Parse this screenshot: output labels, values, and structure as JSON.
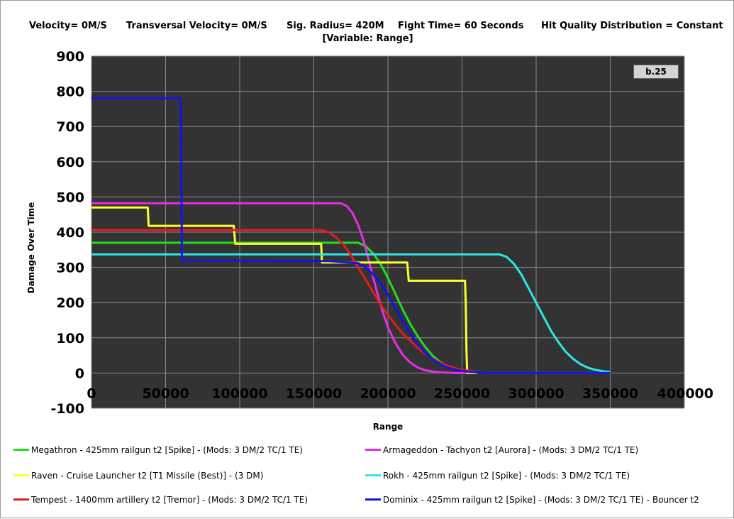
{
  "header": {
    "velocity": "Velocity= 0M/S",
    "transversal": "Transversal Velocity= 0M/S",
    "sig_radius": "Sig. Radius= 420M",
    "fight_time": "Fight Time= 60 Seconds",
    "hit_quality": "Hit Quality Distribution = Constant",
    "variable": "[Variable: Range]"
  },
  "badge": "b.25",
  "chart_data": {
    "type": "line",
    "title": "",
    "xlabel": "Range",
    "ylabel": "Damage Over Time",
    "xlim": [
      0,
      400000
    ],
    "ylim": [
      -100,
      900
    ],
    "x_ticks": [
      "0",
      "50000",
      "100000",
      "150000",
      "200000",
      "250000",
      "300000",
      "350000",
      "400000"
    ],
    "y_ticks": [
      "900",
      "800",
      "700",
      "600",
      "500",
      "400",
      "300",
      "200",
      "100",
      "0",
      "-100"
    ],
    "grid": true,
    "legend_position": "bottom",
    "series": [
      {
        "name": "Megathron - 425mm railgun t2 [Spike] - (Mods: 3 DM/2 TC/1 TE)",
        "color": "#22dd22",
        "points": [
          [
            0,
            370
          ],
          [
            150000,
            370
          ],
          [
            180000,
            370
          ],
          [
            185000,
            360
          ],
          [
            190000,
            340
          ],
          [
            195000,
            310
          ],
          [
            200000,
            270
          ],
          [
            205000,
            225
          ],
          [
            210000,
            180
          ],
          [
            215000,
            140
          ],
          [
            220000,
            105
          ],
          [
            225000,
            75
          ],
          [
            230000,
            50
          ],
          [
            235000,
            32
          ],
          [
            240000,
            20
          ],
          [
            245000,
            12
          ],
          [
            250000,
            7
          ],
          [
            255000,
            4
          ],
          [
            260000,
            2
          ],
          [
            265000,
            1
          ],
          [
            270000,
            0
          ],
          [
            350000,
            0
          ]
        ]
      },
      {
        "name": "Armageddon - Tachyon t2 [Aurora] - (Mods: 3 DM/2 TC/1 TE)",
        "color": "#e62ee6",
        "points": [
          [
            0,
            482
          ],
          [
            168000,
            482
          ],
          [
            172000,
            475
          ],
          [
            176000,
            455
          ],
          [
            180000,
            420
          ],
          [
            184000,
            370
          ],
          [
            188000,
            305
          ],
          [
            192000,
            240
          ],
          [
            196000,
            180
          ],
          [
            200000,
            130
          ],
          [
            205000,
            85
          ],
          [
            210000,
            52
          ],
          [
            215000,
            30
          ],
          [
            220000,
            16
          ],
          [
            225000,
            8
          ],
          [
            230000,
            4
          ],
          [
            235000,
            2
          ],
          [
            240000,
            1
          ],
          [
            245000,
            0
          ],
          [
            260000,
            0
          ]
        ]
      },
      {
        "name": "Raven - Cruise Launcher t2 [T1 Missile (Best)] - (3 DM)",
        "color": "#ffff2a",
        "points": [
          [
            0,
            470
          ],
          [
            38000,
            470
          ],
          [
            38500,
            418
          ],
          [
            96000,
            418
          ],
          [
            97000,
            367
          ],
          [
            155000,
            367
          ],
          [
            155500,
            314
          ],
          [
            213000,
            314
          ],
          [
            214000,
            262
          ],
          [
            252000,
            262
          ],
          [
            252500,
            200
          ],
          [
            253000,
            60
          ],
          [
            253500,
            0
          ],
          [
            260000,
            0
          ]
        ]
      },
      {
        "name": "Rokh - 425mm railgun t2 [Spike] - (Mods: 3 DM/2 TC/1 TE)",
        "color": "#2ee6e6",
        "points": [
          [
            0,
            337
          ],
          [
            275000,
            337
          ],
          [
            280000,
            330
          ],
          [
            285000,
            310
          ],
          [
            290000,
            280
          ],
          [
            295000,
            240
          ],
          [
            300000,
            200
          ],
          [
            305000,
            160
          ],
          [
            310000,
            120
          ],
          [
            315000,
            88
          ],
          [
            320000,
            60
          ],
          [
            325000,
            40
          ],
          [
            330000,
            25
          ],
          [
            335000,
            15
          ],
          [
            340000,
            9
          ],
          [
            345000,
            5
          ],
          [
            350000,
            3
          ]
        ]
      },
      {
        "name": "Tempest - 1400mm artillery t2 [Tremor] - (Mods: 3 DM/2 TC/1 TE)",
        "color": "#e61c1c",
        "points": [
          [
            0,
            406
          ],
          [
            155000,
            406
          ],
          [
            160000,
            400
          ],
          [
            165000,
            385
          ],
          [
            170000,
            365
          ],
          [
            175000,
            335
          ],
          [
            180000,
            300
          ],
          [
            185000,
            265
          ],
          [
            190000,
            230
          ],
          [
            195000,
            195
          ],
          [
            200000,
            165
          ],
          [
            205000,
            138
          ],
          [
            210000,
            112
          ],
          [
            215000,
            92
          ],
          [
            220000,
            72
          ],
          [
            225000,
            55
          ],
          [
            230000,
            42
          ],
          [
            235000,
            30
          ],
          [
            240000,
            21
          ],
          [
            245000,
            14
          ],
          [
            250000,
            9
          ],
          [
            255000,
            6
          ],
          [
            260000,
            3
          ],
          [
            265000,
            1
          ],
          [
            275000,
            0
          ]
        ]
      },
      {
        "name": "Dominix - 425mm railgun t2 [Spike] - (Mods: 3 DM/2 TC/1 TE) - Bouncer t2",
        "color": "#1414e6",
        "points": [
          [
            0,
            780
          ],
          [
            60000,
            780
          ],
          [
            60500,
            700
          ],
          [
            61000,
            320
          ],
          [
            160000,
            318
          ],
          [
            180000,
            312
          ],
          [
            185000,
            300
          ],
          [
            190000,
            280
          ],
          [
            195000,
            255
          ],
          [
            200000,
            222
          ],
          [
            205000,
            185
          ],
          [
            210000,
            148
          ],
          [
            215000,
            113
          ],
          [
            220000,
            82
          ],
          [
            225000,
            58
          ],
          [
            230000,
            40
          ],
          [
            235000,
            26
          ],
          [
            240000,
            16
          ],
          [
            245000,
            10
          ],
          [
            250000,
            6
          ],
          [
            255000,
            3
          ],
          [
            260000,
            2
          ],
          [
            270000,
            0
          ],
          [
            350000,
            0
          ]
        ]
      }
    ]
  }
}
